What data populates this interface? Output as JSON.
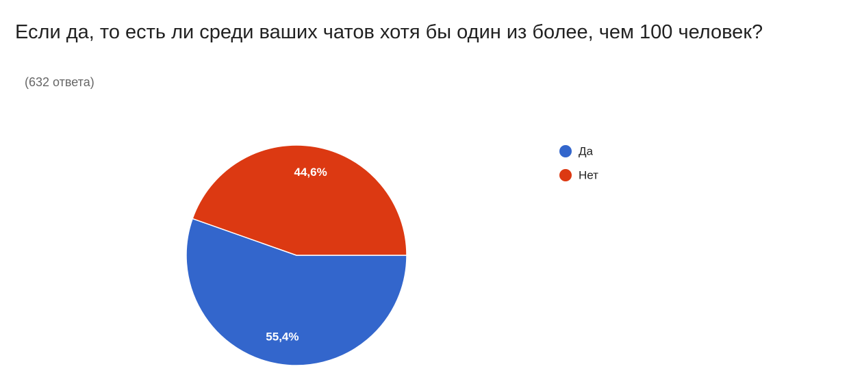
{
  "chart_data": {
    "type": "pie",
    "title": "Если да, то есть ли среди ваших чатов хотя бы один из более, чем 100 человек?",
    "subtitle": "(632 ответа)",
    "categories": [
      "Да",
      "Нет"
    ],
    "values": [
      55.4,
      44.6
    ],
    "value_labels": [
      "55,4%",
      "44,6%"
    ],
    "colors": [
      "#3366cc",
      "#dc3912"
    ],
    "legend": "right"
  }
}
